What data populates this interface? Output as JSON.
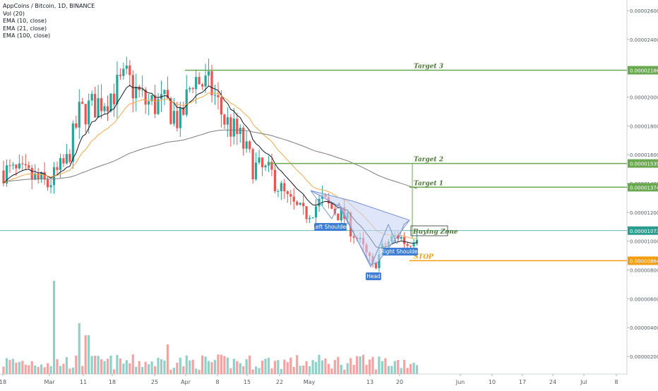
{
  "header": {
    "symbol": "AppCoins / Bitcoin, 1D, BINANCE",
    "indicators": [
      "Vol (20)",
      "EMA (10, close)",
      "EMA (21, close)",
      "EMA (100, close)"
    ]
  },
  "colors": {
    "up": "#26a69a",
    "down": "#ef5350",
    "vol_up": "#8fd1c8",
    "vol_down": "#f4a3a3",
    "ema10": "#131722",
    "ema21": "#f6a94a",
    "ema100": "#7c7c7c",
    "target": "#6aa84f",
    "stop": "#f39c12",
    "price_line": "#2a9d8f",
    "pattern_fill": "#c9d6f5",
    "pattern_stroke": "#7a93d6",
    "label_bg": "#3d7dd6"
  },
  "chart_data": {
    "type": "candlestick",
    "x_axis_labels": [
      "18",
      "Mar",
      "11",
      "18",
      "25",
      "Apr",
      "8",
      "15",
      "22",
      "May",
      "13",
      "20",
      "Jun",
      "10",
      "17",
      "24",
      "Jul",
      "8"
    ],
    "y_axis_labels": [
      "0.00002600",
      "0.00002400",
      "0.00002200",
      "0.00002000",
      "0.00001800",
      "0.00001600",
      "0.00001400",
      "0.00001200",
      "0.00001000",
      "0.00000800",
      "0.00000600",
      "0.00000400",
      "0.00000200"
    ],
    "ylim": [
      1e-07,
      2.7e-06
    ],
    "price_levels": [
      {
        "label": "Target 3",
        "value": "0.00002186"
      },
      {
        "label": "Target 2",
        "value": "0.00001539"
      },
      {
        "label": "Target 1",
        "value": "0.00001374"
      },
      {
        "label": "",
        "value": "0.00001073"
      },
      {
        "label": "STOP",
        "value": "0.00000864"
      }
    ],
    "annotations": [
      "Left Shoulder",
      "Head",
      "Right Shoulder",
      "Buying Zone"
    ],
    "pattern": "inverse head and shoulders"
  }
}
